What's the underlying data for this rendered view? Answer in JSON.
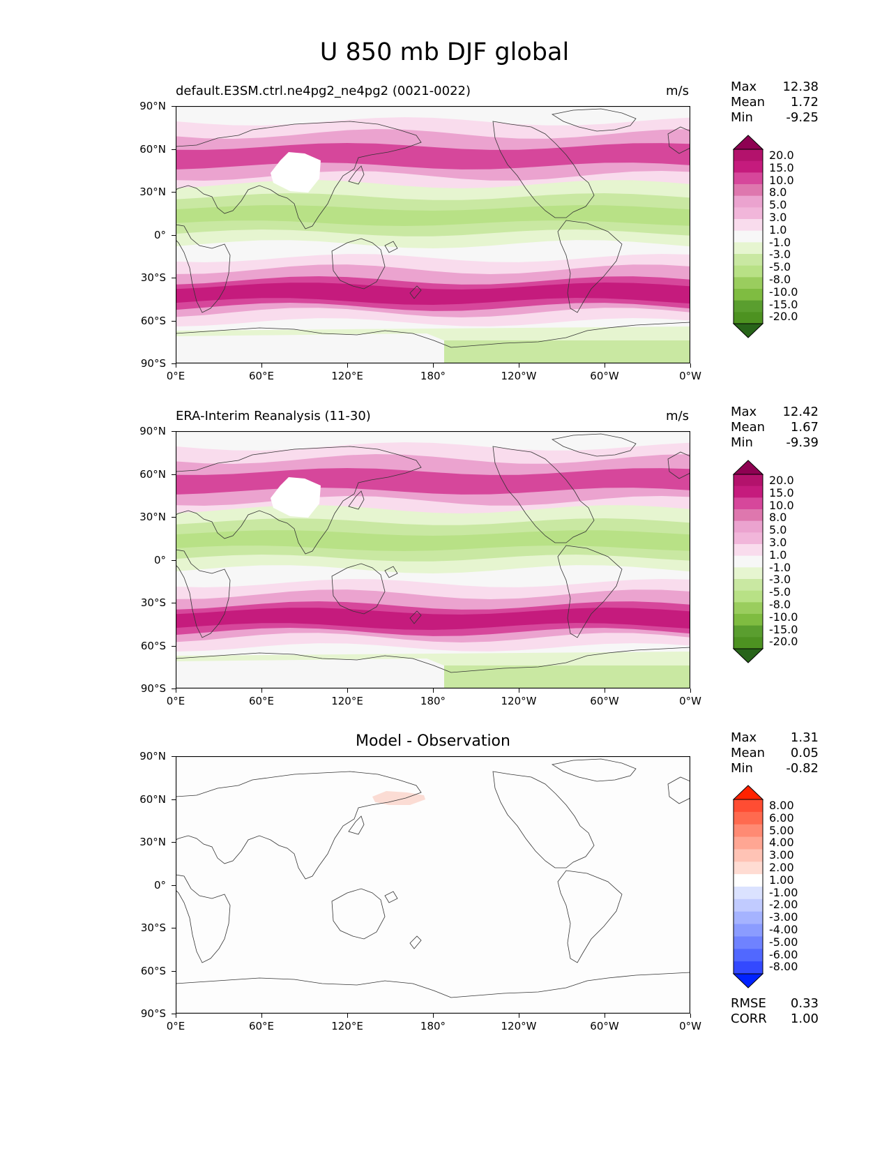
{
  "title": "U 850 mb DJF global",
  "panels": [
    {
      "left_title": "default.E3SM.ctrl.ne4pg2_ne4pg2 (0021-0022)",
      "units": "m/s",
      "stats": [
        {
          "label": "Max",
          "value": "12.38"
        },
        {
          "label": "Mean",
          "value": "1.72"
        },
        {
          "label": "Min",
          "value": "-9.25"
        }
      ]
    },
    {
      "left_title": "ERA-Interim Reanalysis (11-30)",
      "units": "m/s",
      "stats": [
        {
          "label": "Max",
          "value": "12.42"
        },
        {
          "label": "Mean",
          "value": "1.67"
        },
        {
          "label": "Min",
          "value": "-9.39"
        }
      ]
    },
    {
      "center_title": "Model - Observation",
      "stats": [
        {
          "label": "Max",
          "value": "1.31"
        },
        {
          "label": "Mean",
          "value": "0.05"
        },
        {
          "label": "Min",
          "value": "-0.82"
        }
      ],
      "metrics": [
        {
          "label": "RMSE",
          "value": "0.33"
        },
        {
          "label": "CORR",
          "value": "1.00"
        }
      ]
    }
  ],
  "lat_ticks": [
    "90°N",
    "60°N",
    "30°N",
    "0°",
    "30°S",
    "60°S",
    "90°S"
  ],
  "lon_ticks": [
    "0°E",
    "60°E",
    "120°E",
    "180°",
    "120°W",
    "60°W",
    "0°W"
  ],
  "colorbar_main": {
    "labels": [
      "20.0",
      "15.0",
      "10.0",
      "8.0",
      "5.0",
      "3.0",
      "1.0",
      "-1.0",
      "-3.0",
      "-5.0",
      "-8.0",
      "-10.0",
      "-15.0",
      "-20.0"
    ],
    "colors": [
      "#8e0152",
      "#b3126c",
      "#c51b7d",
      "#d6479b",
      "#de77ae",
      "#eba3cf",
      "#f1b6da",
      "#f9dced",
      "#f7f7f7",
      "#e6f5d0",
      "#c9e8a2",
      "#b8e186",
      "#9acd5e",
      "#7fbc41",
      "#5a9e2f",
      "#4d9221",
      "#276419"
    ]
  },
  "colorbar_diff": {
    "labels": [
      "8.00",
      "6.00",
      "5.00",
      "4.00",
      "3.00",
      "2.00",
      "1.00",
      "-1.00",
      "-2.00",
      "-3.00",
      "-4.00",
      "-5.00",
      "-6.00",
      "-8.00"
    ],
    "colors": [
      "#ff2200",
      "#ff4d33",
      "#ff6a4f",
      "#ff8a73",
      "#ffa693",
      "#ffc3b5",
      "#ffdcd3",
      "#ffffff",
      "#dbe2ff",
      "#c1cbff",
      "#a5b3ff",
      "#8b9cff",
      "#6f82ff",
      "#5168ff",
      "#3349ff",
      "#0022ff"
    ]
  }
}
